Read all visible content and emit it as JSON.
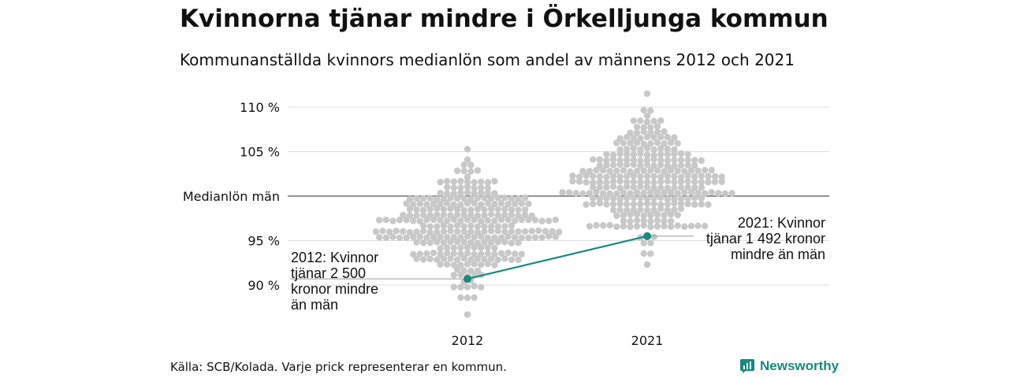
{
  "title": "Kvinnorna tjänar mindre i Örkelljunga kommun",
  "subtitle": "Kommunanställda kvinnors medianlön som andel av männens 2012 och 2021",
  "source": "Källa: SCB/Kolada. Varje prick representerar en kommun.",
  "brand": "Newsworthy",
  "colors": {
    "dots": "#c8c8c8",
    "highlight": "#178a7b",
    "grid": "#dddddd",
    "reference": "#555555"
  },
  "chart_data": {
    "type": "scatter",
    "subtype": "beeswarm",
    "categories": [
      "2012",
      "2021"
    ],
    "y_ticks": [
      {
        "value": 90,
        "label": "90 %"
      },
      {
        "value": 95,
        "label": "95 %"
      },
      {
        "value": 100,
        "label": "Medianlön män"
      },
      {
        "value": 105,
        "label": "105 %"
      },
      {
        "value": 110,
        "label": "110 %"
      }
    ],
    "ylim": [
      86,
      112
    ],
    "reference_line": 100,
    "grid": true,
    "distribution": [
      {
        "category": "2012",
        "min": 87,
        "max": 105.2,
        "center": 96.5,
        "spread": 3.0
      },
      {
        "category": "2021",
        "min": 92.5,
        "max": 111.2,
        "center": 101.5,
        "spread": 3.2
      }
    ],
    "highlight": {
      "name": "Örkelljunga",
      "values": [
        {
          "category": "2012",
          "value": 90.7
        },
        {
          "category": "2021",
          "value": 95.5
        }
      ]
    },
    "annotations": [
      {
        "category": "2012",
        "lines": [
          "2012: Kvinnor",
          "tjänar 2 500",
          "kronor mindre",
          "än män"
        ]
      },
      {
        "category": "2021",
        "lines": [
          "2021: Kvinnor",
          "tjänar 1 492 kronor",
          "mindre än män"
        ]
      }
    ]
  }
}
